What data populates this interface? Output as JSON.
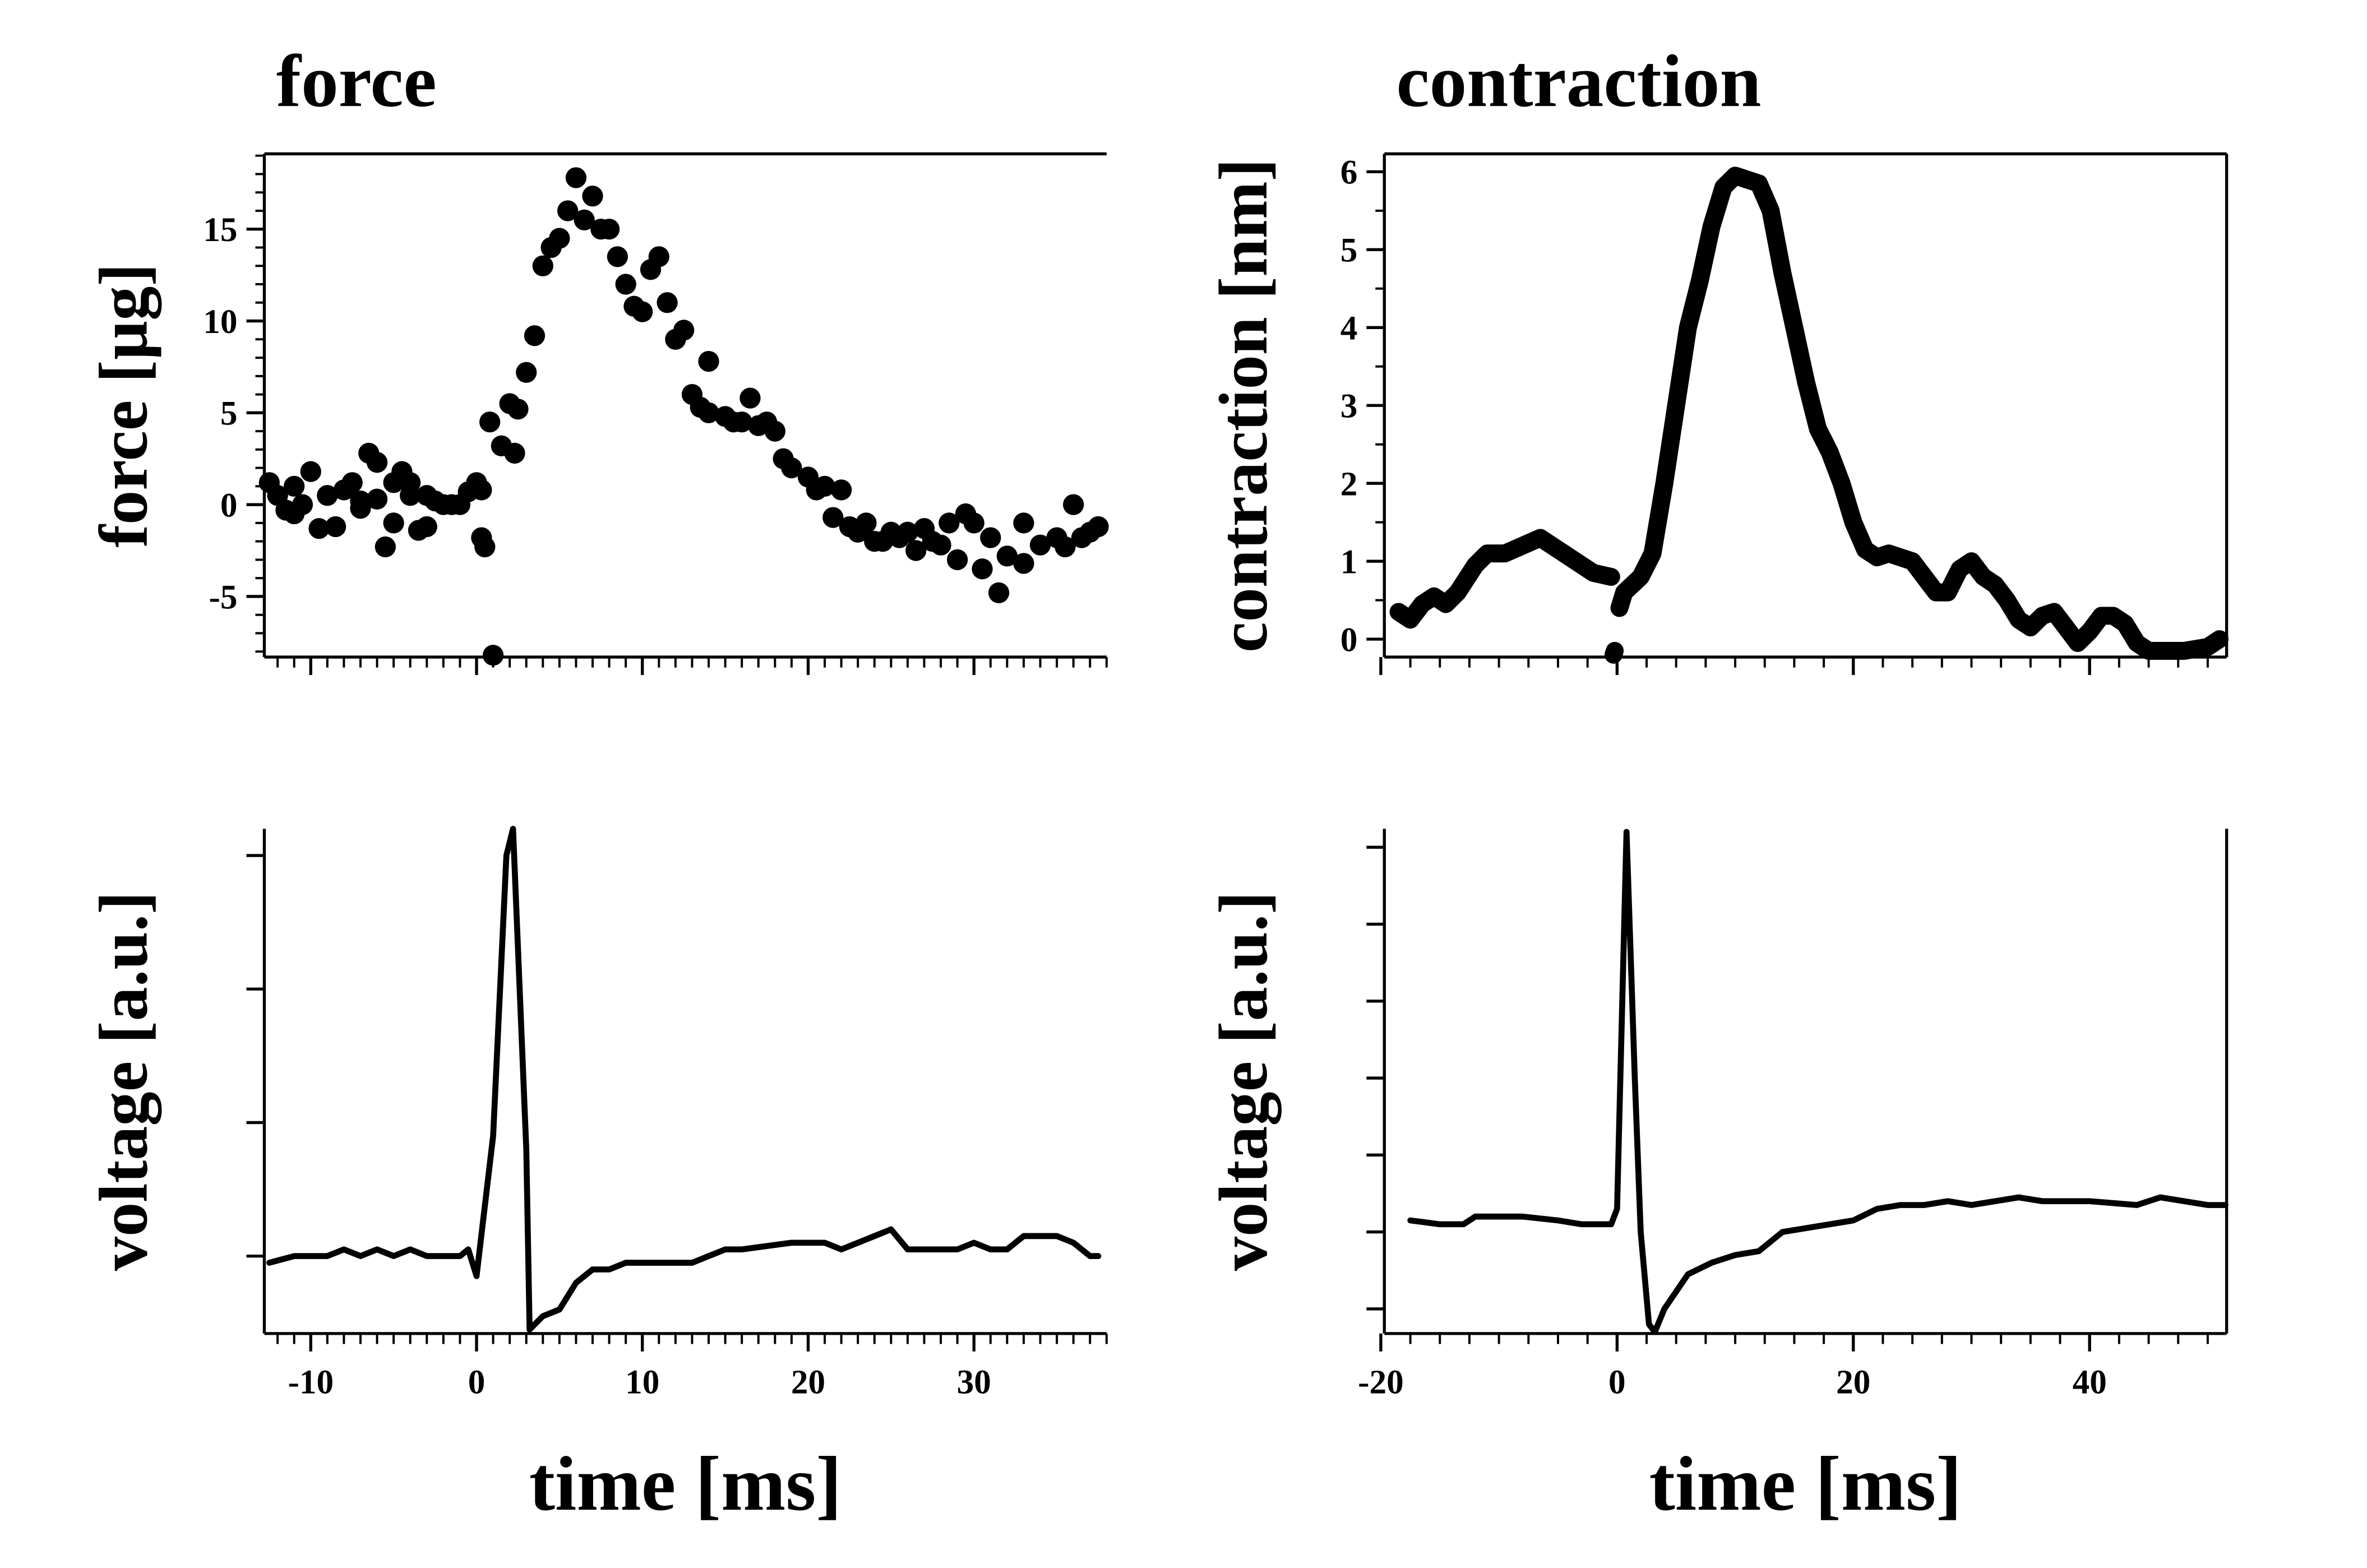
{
  "chart_data": [
    {
      "type": "scatter",
      "title": "force",
      "ylabel": "force [µg]",
      "color": "#000000",
      "xlim": [
        -12.8,
        38
      ],
      "ylim": [
        -8.3,
        19.1
      ],
      "xticks": [
        -10,
        0,
        10,
        20,
        30
      ],
      "yticks": [
        -5,
        0,
        5,
        10,
        15
      ],
      "xtick_labels": false,
      "ytick_labels": true,
      "xminor_step": 1,
      "yminor_step": 1,
      "spines": [
        "left",
        "bottom",
        "top"
      ],
      "x": [
        -12.5,
        -12,
        -11.5,
        -11,
        -11,
        -10.5,
        -10,
        -9.5,
        -9,
        -8.5,
        -8,
        -7.5,
        -7,
        -7,
        -6.5,
        -6,
        -6,
        -5.5,
        -5,
        -5,
        -4.5,
        -4,
        -4,
        -3.5,
        -3,
        -3,
        -2.5,
        -2,
        -1.5,
        -1,
        -0.5,
        0,
        0.3,
        0.3,
        0.5,
        0.8,
        1,
        1.5,
        2,
        2.3,
        2.5,
        3,
        3.5,
        4,
        4.5,
        5,
        5.5,
        6,
        6.5,
        7,
        7.5,
        8,
        8.5,
        9,
        9.5,
        10,
        10.5,
        11,
        11.5,
        12,
        12.5,
        13,
        13.5,
        14,
        14,
        15,
        15.5,
        16,
        16.5,
        17,
        17.5,
        18,
        18.5,
        19,
        20,
        20.5,
        21,
        22,
        21.5,
        22.5,
        23,
        23.5,
        24,
        24.5,
        25,
        25.5,
        26,
        26.5,
        27,
        27.5,
        28,
        28.5,
        29,
        29.5,
        30,
        30.5,
        31,
        31.5,
        32,
        33,
        33,
        34,
        35,
        35.5,
        36,
        36.5,
        37,
        37.5
      ],
      "values": [
        1.2,
        0.5,
        -0.3,
        -0.5,
        1.0,
        0,
        1.8,
        -1.3,
        0.5,
        -1.2,
        0.8,
        1.2,
        0.2,
        -0.2,
        2.8,
        0.3,
        2.3,
        -2.3,
        1.2,
        -1,
        1.8,
        0.5,
        1.2,
        -1.4,
        -1.2,
        0.5,
        0.2,
        0,
        0,
        0,
        0.7,
        1.2,
        0.8,
        -1.8,
        -2.3,
        4.5,
        -8.2,
        3.2,
        5.5,
        2.8,
        5.2,
        7.2,
        9.2,
        13,
        14,
        14.5,
        16,
        17.8,
        15.5,
        16.8,
        15,
        15,
        13.5,
        12,
        10.8,
        10.5,
        12.8,
        13.5,
        11,
        9,
        9.5,
        6,
        5.3,
        7.8,
        5,
        4.8,
        4.5,
        4.5,
        5.8,
        4.3,
        4.5,
        4,
        2.5,
        2,
        1.5,
        0.8,
        1,
        0.8,
        -0.7,
        -1.2,
        -1.5,
        -1,
        -2,
        -2,
        -1.5,
        -1.8,
        -1.5,
        -2.5,
        -1.3,
        -2,
        -2.2,
        -1,
        -3,
        -0.5,
        -1,
        -3.5,
        -1.8,
        -4.8,
        -2.8,
        -3.2,
        -1,
        -2.2,
        -1.8,
        -2.3,
        0,
        -1.8,
        -1.5,
        -1.2
      ]
    },
    {
      "type": "line",
      "title": "contraction",
      "ylabel": "contraction [nm]",
      "color": "#000000",
      "linewidth": 12,
      "xlim": [
        -19.7,
        51.6
      ],
      "ylim": [
        -0.23,
        6.23
      ],
      "xticks": [
        -20,
        0,
        20,
        40
      ],
      "yticks": [
        0,
        1,
        2,
        3,
        4,
        5,
        6
      ],
      "xtick_labels": false,
      "ytick_labels": true,
      "xminor_step": 2.5,
      "yminor_step": 0.5,
      "spines": [
        "left",
        "bottom",
        "top",
        "right"
      ],
      "x": [
        -18.5,
        -17.5,
        -16.5,
        -15.5,
        -14.5,
        -13.5,
        -12,
        -11,
        -9.5,
        -8,
        -6.5,
        -5,
        -3.5,
        -2,
        -0.5,
        null,
        -0.3,
        -0.2,
        null,
        0.2,
        0.6,
        2,
        3,
        4,
        5,
        6,
        7,
        8,
        9,
        10,
        11,
        12,
        13,
        14,
        15,
        16,
        17,
        18,
        19,
        20,
        21,
        22,
        23,
        25,
        26,
        27,
        28,
        29,
        30,
        31,
        32,
        33,
        34,
        35,
        36,
        37,
        38,
        39,
        40,
        41,
        42,
        43,
        44,
        45,
        48,
        50,
        51
      ],
      "values": [
        0.35,
        0.25,
        0.45,
        0.55,
        0.45,
        0.6,
        0.95,
        1.1,
        1.1,
        1.2,
        1.3,
        1.15,
        1.0,
        0.85,
        0.8,
        null,
        -0.2,
        -0.15,
        null,
        0.4,
        0.6,
        0.8,
        1.1,
        2,
        3,
        4,
        4.6,
        5.3,
        5.8,
        5.95,
        5.9,
        5.85,
        5.5,
        4.7,
        4,
        3.3,
        2.7,
        2.4,
        2.0,
        1.5,
        1.15,
        1.05,
        1.1,
        1.0,
        0.8,
        0.6,
        0.6,
        0.9,
        1.0,
        0.8,
        0.7,
        0.5,
        0.25,
        0.15,
        0.3,
        0.35,
        0.15,
        -0.05,
        0.1,
        0.3,
        0.3,
        0.2,
        -0.05,
        -0.15,
        -0.15,
        -0.1,
        0
      ]
    },
    {
      "type": "line",
      "ylabel": "voltage [a.u.]",
      "xlabel": "time [ms]",
      "color": "#000000",
      "linewidth": 4,
      "xlim": [
        -12.8,
        38
      ],
      "ylim": [
        -0.58,
        3.2
      ],
      "xticks": [
        -10,
        0,
        10,
        20,
        30
      ],
      "yticks": [
        0,
        1,
        2,
        3
      ],
      "xtick_labels": true,
      "ytick_labels": false,
      "xminor_step": 1,
      "spines": [
        "left",
        "bottom"
      ],
      "x": [
        -12.5,
        -11,
        -9,
        -8,
        -7,
        -6,
        -5,
        -4,
        -3,
        -1,
        -0.5,
        0,
        1,
        1.8,
        2.2,
        3,
        3.2,
        4,
        5,
        6,
        7,
        8,
        9,
        10,
        12,
        13,
        15,
        16,
        19,
        21,
        22,
        23,
        24,
        25,
        26,
        29,
        30,
        31,
        32,
        33,
        35,
        36,
        37,
        37.5
      ],
      "values": [
        -0.05,
        0,
        0,
        0.05,
        0,
        0.05,
        0,
        0.05,
        0,
        0,
        0.05,
        -0.15,
        0.9,
        3.0,
        3.2,
        0.8,
        -0.55,
        -0.45,
        -0.4,
        -0.2,
        -0.1,
        -0.1,
        -0.05,
        -0.05,
        -0.05,
        -0.05,
        0.05,
        0.05,
        0.1,
        0.1,
        0.05,
        0.1,
        0.15,
        0.2,
        0.05,
        0.05,
        0.1,
        0.05,
        0.05,
        0.15,
        0.15,
        0.1,
        0,
        0
      ]
    },
    {
      "type": "line",
      "ylabel": "voltage [a.u.]",
      "xlabel": "time [ms]",
      "color": "#000000",
      "linewidth": 4,
      "xlim": [
        -19.7,
        51.6
      ],
      "ylim": [
        -1.32,
        5.24
      ],
      "xticks": [
        -20,
        0,
        20,
        40
      ],
      "yticks": [
        -1,
        0,
        1,
        2,
        3,
        4,
        5
      ],
      "xtick_labels": true,
      "ytick_labels": false,
      "xminor_step": 2.5,
      "spines": [
        "left",
        "bottom",
        "right"
      ],
      "x": [
        -17.5,
        -15,
        -13,
        -12,
        -8,
        -5,
        -3,
        -0.5,
        0,
        0.8,
        1.5,
        2,
        2.7,
        3.2,
        4,
        6,
        8,
        10,
        12,
        14,
        16,
        18,
        20,
        22,
        24,
        26,
        28,
        30,
        34,
        36,
        40,
        44,
        46,
        50,
        51.5
      ],
      "values": [
        0.15,
        0.1,
        0.1,
        0.2,
        0.2,
        0.15,
        0.1,
        0.1,
        0.3,
        5.2,
        2,
        0,
        -1.2,
        -1.3,
        -1,
        -0.55,
        -0.4,
        -0.3,
        -0.25,
        0,
        0.05,
        0.1,
        0.15,
        0.3,
        0.35,
        0.35,
        0.4,
        0.35,
        0.45,
        0.4,
        0.4,
        0.35,
        0.45,
        0.35,
        0.35
      ]
    }
  ]
}
